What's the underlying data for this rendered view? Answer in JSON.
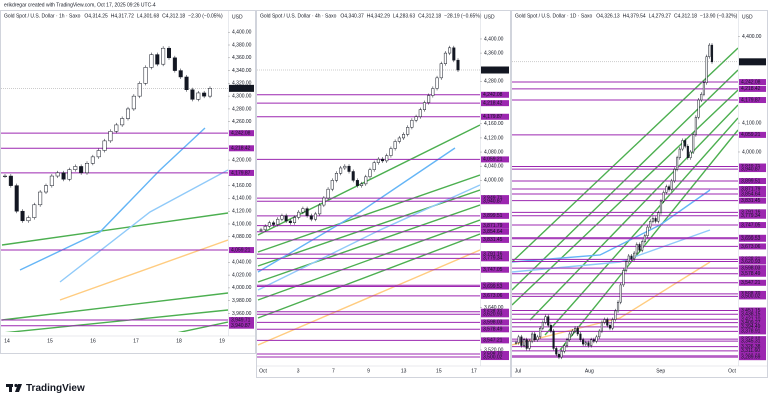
{
  "header": {
    "credit": "erikdregar created with TradingView.com, Oct 17, 2025 09:26 UTC-4"
  },
  "footer": {
    "brand": "TradingView"
  },
  "last": {
    "value": 4312.18,
    "label": "4,312.18"
  },
  "levels": [
    {
      "value": 4242.08,
      "label": "4,242.08"
    },
    {
      "value": 4218.42,
      "label": "4,218.42"
    },
    {
      "value": 4179.87,
      "label": "4,179.87"
    },
    {
      "value": 4059.21,
      "label": "4,059.21"
    },
    {
      "value": 3949.71,
      "label": "3,949.71"
    },
    {
      "value": 3940.87,
      "label": "3,940.87"
    },
    {
      "value": 3899.51,
      "label": "3,899.51"
    },
    {
      "value": 3871.79,
      "label": "3,871.79"
    },
    {
      "value": 3854.64,
      "label": "3,854.64"
    },
    {
      "value": 3831.45,
      "label": "3,831.45"
    },
    {
      "value": 3791.16,
      "label": "3,791.16"
    },
    {
      "value": 3779.34,
      "label": "3,779.34"
    },
    {
      "value": 3747.05,
      "label": "3,747.05"
    },
    {
      "value": 3703.02,
      "label": "3,703.02"
    },
    {
      "value": 3699.53,
      "label": "3,699.53"
    },
    {
      "value": 3673.06,
      "label": "3,673.06"
    },
    {
      "value": 3628.31,
      "label": "3,628.31"
    },
    {
      "value": 3620.93,
      "label": "3,620.93"
    },
    {
      "value": 3598.03,
      "label": "3,598.03"
    },
    {
      "value": 3578.49,
      "label": "3,578.49"
    },
    {
      "value": 3547.21,
      "label": "3,547.21"
    },
    {
      "value": 3508.7,
      "label": "3,508.70"
    },
    {
      "value": 3500.02,
      "label": "3,500.02"
    },
    {
      "value": 3451.15,
      "label": "3,451.15"
    },
    {
      "value": 3438.15,
      "label": "3,438.15"
    },
    {
      "value": 3421.1,
      "label": "3,421.10"
    },
    {
      "value": 3409.27,
      "label": "3,409.27"
    },
    {
      "value": 3394.49,
      "label": "3,394.49"
    },
    {
      "value": 3378.91,
      "label": "3,378.91"
    },
    {
      "value": 3352.18,
      "label": "3,352.18"
    },
    {
      "value": 3345.31,
      "label": "3,345.31"
    },
    {
      "value": 3326.38,
      "label": "3,326.38"
    },
    {
      "value": 3311.6,
      "label": "3,311.60"
    },
    {
      "value": 3293.99,
      "label": "3,293.99"
    },
    {
      "value": 3289.69,
      "label": "3,289.69"
    }
  ],
  "panels": [
    {
      "title": "Gold Spot / U.S. Dollar · 1h · Saxo",
      "ohlc": [
        "O4,314.25",
        "H4,317.72",
        "L4,301.68",
        "C4,312.18"
      ],
      "change": "−2.30 (−0.05%)",
      "currency": "USD",
      "ylim": [
        3931,
        4416
      ],
      "yticks": [
        {
          "value": 4400,
          "label": "4,400.00"
        },
        {
          "value": 4380,
          "label": "4,380.00"
        },
        {
          "value": 4360,
          "label": "4,360.00"
        },
        {
          "value": 4340,
          "label": "4,340.00"
        },
        {
          "value": 4320,
          "label": "4,320.00"
        },
        {
          "value": 4300,
          "label": "4,300.00"
        },
        {
          "value": 4280,
          "label": "4,280.00"
        },
        {
          "value": 4260,
          "label": "4,260.00"
        },
        {
          "value": 4200,
          "label": "4,200.00"
        },
        {
          "value": 4160,
          "label": "4,160.00"
        },
        {
          "value": 4140,
          "label": "4,140.00"
        },
        {
          "value": 4120,
          "label": "4,120.00"
        },
        {
          "value": 4100,
          "label": "4,100.00"
        },
        {
          "value": 4080,
          "label": "4,080.00"
        },
        {
          "value": 4040,
          "label": "4,040.00"
        },
        {
          "value": 4020,
          "label": "4,020.00"
        },
        {
          "value": 4000,
          "label": "4,000.00"
        },
        {
          "value": 3980,
          "label": "3,980.00"
        },
        {
          "value": 3960,
          "label": "3,960.00"
        }
      ],
      "xlabels": [
        "14",
        "15",
        "16",
        "17",
        "18",
        "19"
      ],
      "closes": [
        4175,
        4160,
        4120,
        4105,
        4110,
        4130,
        4150,
        4160,
        4175,
        4180,
        4170,
        4185,
        4190,
        4180,
        4195,
        4205,
        4215,
        4230,
        4245,
        4255,
        4265,
        4280,
        4300,
        4320,
        4345,
        4365,
        4350,
        4375,
        4360,
        4340,
        4330,
        4310,
        4295,
        4305,
        4300,
        4312.18
      ]
    },
    {
      "title": "Gold Spot / U.S. Dollar · 4h · Saxo",
      "ohlc": [
        "O4,340.37",
        "H4,342.29",
        "L4,283.63",
        "C4,312.18"
      ],
      "change": "−28.19 (−0.65%)",
      "currency": "USD",
      "ylim": [
        3486,
        4448
      ],
      "yticks": [
        {
          "value": 4400,
          "label": "4,400.00"
        },
        {
          "value": 4360,
          "label": "4,360.00"
        },
        {
          "value": 4280,
          "label": "4,280.00"
        },
        {
          "value": 4160,
          "label": "4,160.00"
        },
        {
          "value": 4120,
          "label": "4,120.00"
        },
        {
          "value": 4080,
          "label": "4,080.00"
        },
        {
          "value": 4040,
          "label": "4,040.00"
        },
        {
          "value": 4000,
          "label": "4,000.00"
        },
        {
          "value": 3640,
          "label": "3,640.00"
        },
        {
          "value": 3520,
          "label": "3,520.00"
        }
      ],
      "xlabels": [
        "Oct",
        "3",
        "7",
        "9",
        "13",
        "15",
        "17"
      ],
      "closes": [
        3860,
        3870,
        3880,
        3875,
        3890,
        3900,
        3885,
        3880,
        3895,
        3910,
        3920,
        3900,
        3890,
        3905,
        3930,
        3950,
        3975,
        4000,
        4020,
        4035,
        4040,
        4025,
        4000,
        3985,
        3990,
        4010,
        4030,
        4050,
        4060,
        4055,
        4070,
        4090,
        4110,
        4120,
        4130,
        4150,
        4170,
        4180,
        4200,
        4220,
        4240,
        4260,
        4290,
        4330,
        4360,
        4375,
        4340,
        4312.18
      ]
    },
    {
      "title": "Gold Spot / U.S. Dollar · 1D · Saxo",
      "ohlc": [
        "O4,326.13",
        "H4,379.54",
        "L4,279.27",
        "C4,312.18"
      ],
      "change": "−13.90 (−0.32%)",
      "currency": "USD",
      "ylim": [
        3273,
        4450
      ],
      "yticks": [
        {
          "value": 4400,
          "label": "4,400.00"
        },
        {
          "value": 4100,
          "label": "4,100.00"
        },
        {
          "value": 4000,
          "label": "4,000.00"
        }
      ],
      "xlabels": [
        "Jul",
        "Aug",
        "Sep",
        "Oct"
      ],
      "closes": [
        3340,
        3360,
        3330,
        3350,
        3320,
        3345,
        3370,
        3350,
        3360,
        3390,
        3410,
        3430,
        3400,
        3380,
        3320,
        3300,
        3290,
        3310,
        3330,
        3350,
        3370,
        3380,
        3390,
        3370,
        3350,
        3335,
        3340,
        3330,
        3350,
        3345,
        3360,
        3380,
        3410,
        3420,
        3400,
        3390,
        3420,
        3450,
        3480,
        3540,
        3590,
        3620,
        3640,
        3630,
        3650,
        3680,
        3660,
        3690,
        3710,
        3740,
        3760,
        3770,
        3760,
        3790,
        3830,
        3860,
        3880,
        3870,
        3900,
        3940,
        3980,
        4010,
        4040,
        4020,
        3980,
        4000,
        4060,
        4120,
        4180,
        4200,
        4240,
        4330,
        4370,
        4312.18
      ]
    }
  ]
}
